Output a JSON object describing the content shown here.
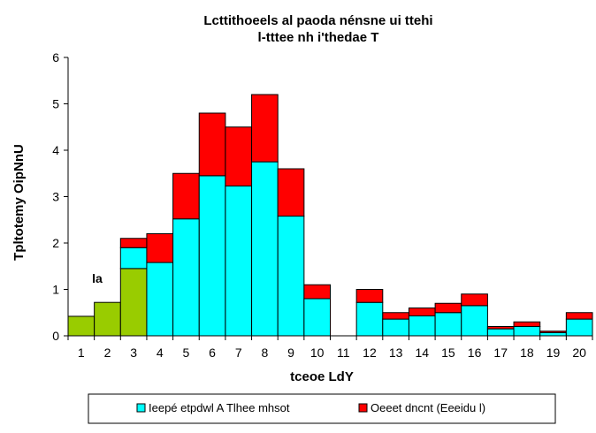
{
  "chart_data": {
    "type": "bar",
    "stacked": true,
    "title": [
      "Lcttithoeels al paoda nénsne ui ttehi",
      "l-tttee nh i'thedae T"
    ],
    "xlabel": "tceoe LdY",
    "ylabel": "Tpltotemy OipNnU",
    "ylim": [
      0,
      6
    ],
    "yticks": [
      0,
      1,
      2,
      3,
      4,
      5,
      6
    ],
    "categories": [
      "1",
      "2",
      "3",
      "4",
      "5",
      "6",
      "7",
      "8",
      "9",
      "10",
      "11",
      "12",
      "13",
      "14",
      "15",
      "16",
      "17",
      "18",
      "19",
      "20"
    ],
    "annotation": "la",
    "grid": false,
    "legend_position": "bottom",
    "colors": {
      "green": "#99cc00",
      "cyan": "#00ffff",
      "red": "#ff0000",
      "outline": "#000000"
    },
    "series": [
      {
        "color_key": "green",
        "values": [
          0.42,
          0.72,
          1.45,
          0,
          0,
          0,
          0,
          0,
          0,
          0,
          0,
          0,
          0,
          0,
          0,
          0,
          0,
          0,
          0,
          0
        ]
      },
      {
        "name": "Ieepé etpdwl A Tlhee mhsot",
        "color_key": "cyan",
        "values": [
          0,
          0,
          0.45,
          1.58,
          2.52,
          3.45,
          3.23,
          3.75,
          2.58,
          0.8,
          0,
          0.72,
          0.36,
          0.43,
          0.5,
          0.65,
          0.15,
          0.2,
          0.07,
          0.36
        ]
      },
      {
        "name": "Oeeet dncnt (Eeeidu l)",
        "color_key": "red",
        "values": [
          0,
          0,
          0.2,
          0.62,
          0.98,
          1.35,
          1.27,
          1.45,
          1.02,
          0.3,
          0,
          0.28,
          0.14,
          0.17,
          0.2,
          0.25,
          0.05,
          0.1,
          0.03,
          0.14
        ]
      }
    ]
  }
}
